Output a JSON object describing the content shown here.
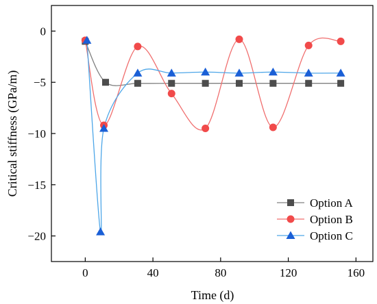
{
  "chart_data": {
    "type": "line",
    "xlabel": "Time (d)",
    "ylabel": "Critical stiffness (GPa/m)",
    "xlim": [
      -20,
      170
    ],
    "ylim": [
      -22.5,
      2.5
    ],
    "xticks": [
      0,
      40,
      80,
      120,
      160
    ],
    "yticks": [
      0,
      -5,
      -10,
      -15,
      -20
    ],
    "xtick_labels": [
      "0",
      "40",
      "80",
      "120",
      "160"
    ],
    "ytick_labels": [
      "0",
      "−5",
      "−10",
      "−15",
      "−20"
    ],
    "legend_position": "bottom-right",
    "grid": false,
    "series": [
      {
        "name": "Option A",
        "color": "#808080",
        "marker": "square",
        "marker_color": "#4d4d4d",
        "x": [
          0,
          12,
          31,
          51,
          71,
          91,
          111,
          132,
          151
        ],
        "y": [
          -1.0,
          -5.0,
          -5.1,
          -5.1,
          -5.1,
          -5.1,
          -5.1,
          -5.1,
          -5.1
        ]
      },
      {
        "name": "Option B",
        "color": "#f06e6e",
        "marker": "circle",
        "marker_color": "#f14a4a",
        "x": [
          0,
          11,
          31,
          51,
          71,
          91,
          111,
          132,
          151
        ],
        "y": [
          -0.9,
          -9.2,
          -1.5,
          -6.1,
          -9.5,
          -0.8,
          -9.4,
          -1.4,
          -1.0
        ]
      },
      {
        "name": "Option C",
        "color": "#4da6e8",
        "marker": "triangle",
        "marker_color": "#1a5fd6",
        "x": [
          1,
          9,
          11,
          31,
          51,
          71,
          91,
          111,
          132,
          151
        ],
        "y": [
          -0.9,
          -19.6,
          -9.5,
          -4.1,
          -4.1,
          -4.0,
          -4.1,
          -4.0,
          -4.1,
          -4.1
        ]
      }
    ]
  }
}
